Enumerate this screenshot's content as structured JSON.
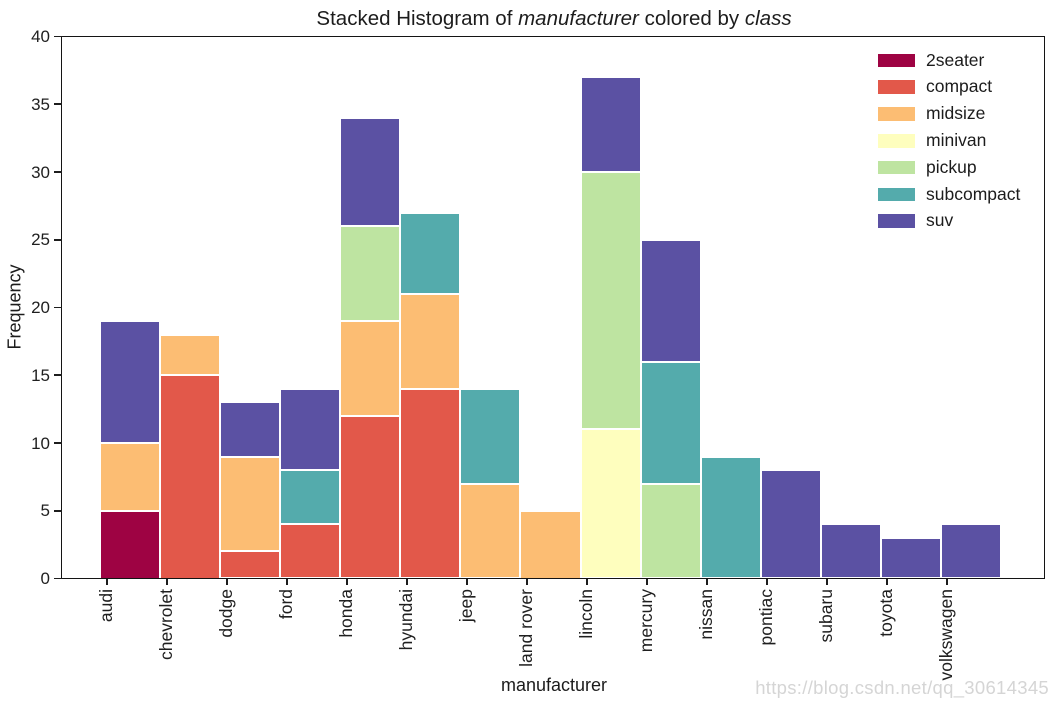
{
  "figure": {
    "watermark": "https://blog.csdn.net/qq_30614345"
  },
  "title_parts": [
    {
      "text": "Stacked Histogram of ",
      "italic": false
    },
    {
      "text": "manufacturer",
      "italic": true
    },
    {
      "text": " colored by ",
      "italic": false
    },
    {
      "text": "class",
      "italic": true
    }
  ],
  "chart_data": {
    "type": "bar",
    "stacked": true,
    "title": "Stacked Histogram of manufacturer colored by class",
    "xlabel": "manufacturer",
    "ylabel": "Frequency",
    "ylim": [
      0,
      40
    ],
    "yticks": [
      0,
      5,
      10,
      15,
      20,
      25,
      30,
      35,
      40
    ],
    "grid": false,
    "legend_position": "upper right",
    "categories": [
      "audi",
      "chevrolet",
      "dodge",
      "ford",
      "honda",
      "hyundai",
      "jeep",
      "land rover",
      "lincoln",
      "mercury",
      "nissan",
      "pontiac",
      "subaru",
      "toyota",
      "volkswagen"
    ],
    "series": [
      {
        "name": "2seater",
        "color": "#9e0343",
        "values": [
          5,
          0,
          0,
          0,
          0,
          0,
          0,
          0,
          0,
          0,
          0,
          0,
          0,
          0,
          0
        ]
      },
      {
        "name": "compact",
        "color": "#e2584a",
        "values": [
          0,
          15,
          2,
          4,
          12,
          14,
          0,
          0,
          0,
          0,
          0,
          0,
          0,
          0,
          0
        ]
      },
      {
        "name": "midsize",
        "color": "#fcbd73",
        "values": [
          5,
          3,
          7,
          0,
          7,
          7,
          7,
          5,
          0,
          0,
          0,
          0,
          0,
          0,
          0
        ]
      },
      {
        "name": "minivan",
        "color": "#fefebe",
        "values": [
          0,
          0,
          0,
          0,
          0,
          0,
          0,
          0,
          11,
          0,
          0,
          0,
          0,
          0,
          0
        ]
      },
      {
        "name": "pickup",
        "color": "#bee4a1",
        "values": [
          0,
          0,
          0,
          0,
          7,
          0,
          0,
          0,
          19,
          7,
          0,
          0,
          0,
          0,
          0
        ]
      },
      {
        "name": "subcompact",
        "color": "#54abac",
        "values": [
          0,
          0,
          0,
          4,
          0,
          6,
          7,
          0,
          0,
          9,
          9,
          0,
          0,
          0,
          0
        ]
      },
      {
        "name": "suv",
        "color": "#5b51a3",
        "values": [
          9,
          0,
          4,
          6,
          8,
          0,
          0,
          0,
          7,
          9,
          0,
          8,
          4,
          3,
          4
        ]
      }
    ]
  }
}
